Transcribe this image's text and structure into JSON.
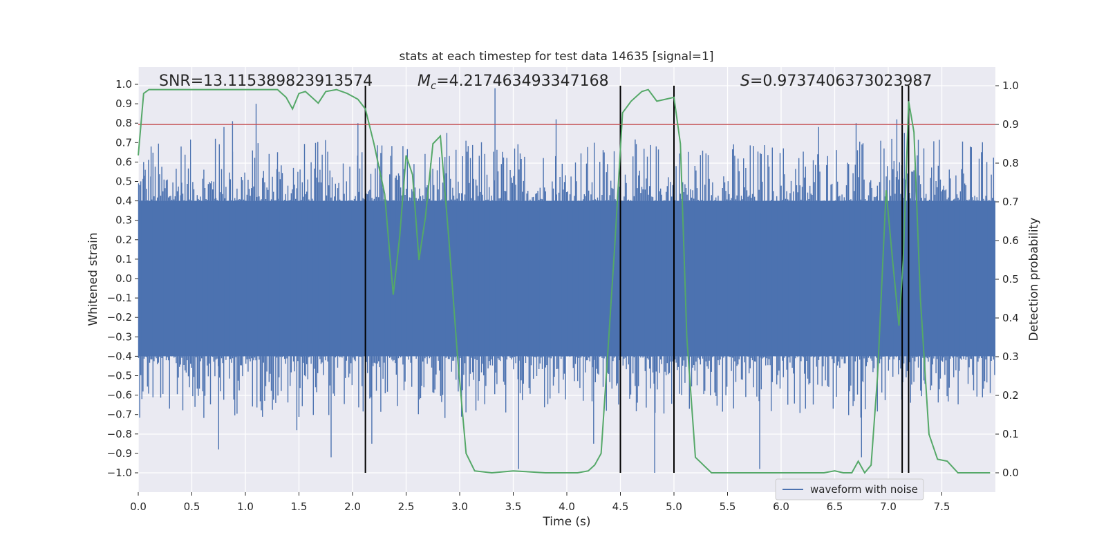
{
  "chart_data": {
    "type": "line",
    "title": "stats at each timestep for test data 14635 [signal=1]",
    "xlabel": "Time (s)",
    "ylabel_left": "Whitened strain",
    "ylabel_right": "Detection probability",
    "xlim": [
      0,
      8
    ],
    "ylim_left": [
      -1.1,
      1.1
    ],
    "ylim_right": [
      -0.05,
      1.05
    ],
    "x_ticks": [
      "0.0",
      "0.5",
      "1.0",
      "1.5",
      "2.0",
      "2.5",
      "3.0",
      "3.5",
      "4.0",
      "4.5",
      "5.0",
      "5.5",
      "6.0",
      "6.5",
      "7.0",
      "7.5"
    ],
    "y_ticks_left": [
      "1.0",
      "0.9",
      "0.8",
      "0.7",
      "0.6",
      "0.5",
      "0.4",
      "0.3",
      "0.2",
      "0.1",
      "0.0",
      "−0.1",
      "−0.2",
      "−0.3",
      "−0.4",
      "−0.5",
      "−0.6",
      "−0.7",
      "−0.8",
      "−0.9",
      "−1.0"
    ],
    "y_ticks_right": [
      "1.0",
      "0.9",
      "0.8",
      "0.7",
      "0.6",
      "0.5",
      "0.4",
      "0.3",
      "0.2",
      "0.1",
      "0.0"
    ],
    "annotations": {
      "snr": "SNR=13.115389823913574",
      "mc_symbol": "M",
      "mc_sub": "c",
      "mc_value": "=4.217463493347168",
      "s_symbol": "S",
      "s_value": "=0.9737406373023987"
    },
    "threshold": {
      "value": 0.9,
      "axis": "right",
      "color": "#c44e52"
    },
    "vertical_lines": [
      2.12,
      4.5,
      5.0,
      7.13,
      7.19
    ],
    "waveform": {
      "name": "waveform with noise",
      "color": "#4c72b0",
      "bulk_amplitude": 0.4,
      "peaks": [
        {
          "t": 0.05,
          "v": 0.6
        },
        {
          "t": 0.12,
          "v": 0.68
        },
        {
          "t": 0.4,
          "v": 0.68
        },
        {
          "t": 0.72,
          "v": 0.72
        },
        {
          "t": 0.75,
          "v": -0.88
        },
        {
          "t": 0.8,
          "v": 0.78
        },
        {
          "t": 0.88,
          "v": 0.81
        },
        {
          "t": 1.1,
          "v": 0.9
        },
        {
          "t": 1.3,
          "v": 0.65
        },
        {
          "t": 1.48,
          "v": -0.78
        },
        {
          "t": 1.8,
          "v": -0.92
        },
        {
          "t": 2.05,
          "v": 0.8
        },
        {
          "t": 2.18,
          "v": -0.85
        },
        {
          "t": 2.88,
          "v": 0.75
        },
        {
          "t": 3.33,
          "v": 0.98
        },
        {
          "t": 3.55,
          "v": -0.98
        },
        {
          "t": 3.9,
          "v": 0.82
        },
        {
          "t": 4.25,
          "v": -0.85
        },
        {
          "t": 4.82,
          "v": -1.0
        },
        {
          "t": 5.0,
          "v": 0.75
        },
        {
          "t": 5.8,
          "v": -0.98
        },
        {
          "t": 6.35,
          "v": 0.78
        },
        {
          "t": 6.7,
          "v": 0.8
        },
        {
          "t": 6.75,
          "v": -0.92
        },
        {
          "t": 7.08,
          "v": 0.82
        },
        {
          "t": 7.15,
          "v": 0.75
        },
        {
          "t": 7.92,
          "v": 0.6
        }
      ]
    },
    "probability": {
      "name": "detection probability",
      "color": "#55a868",
      "x": [
        0.0,
        0.05,
        0.1,
        0.2,
        0.5,
        1.0,
        1.3,
        1.38,
        1.44,
        1.5,
        1.56,
        1.62,
        1.68,
        1.75,
        1.85,
        1.95,
        2.05,
        2.12,
        2.2,
        2.3,
        2.38,
        2.44,
        2.5,
        2.56,
        2.62,
        2.68,
        2.75,
        2.82,
        2.9,
        2.98,
        3.06,
        3.14,
        3.3,
        3.5,
        3.8,
        4.1,
        4.2,
        4.26,
        4.32,
        4.38,
        4.45,
        4.52,
        4.6,
        4.7,
        4.76,
        4.84,
        4.92,
        5.0,
        5.06,
        5.12,
        5.2,
        5.35,
        6.0,
        6.4,
        6.5,
        6.58,
        6.66,
        6.72,
        6.78,
        6.84,
        6.9,
        6.98,
        7.04,
        7.1,
        7.14,
        7.19,
        7.24,
        7.3,
        7.38,
        7.46,
        7.55,
        7.65,
        7.95
      ],
      "y": [
        0.82,
        0.98,
        0.99,
        0.99,
        0.99,
        0.99,
        0.99,
        0.97,
        0.94,
        0.98,
        0.985,
        0.97,
        0.955,
        0.985,
        0.99,
        0.98,
        0.965,
        0.94,
        0.85,
        0.72,
        0.46,
        0.61,
        0.82,
        0.77,
        0.55,
        0.66,
        0.85,
        0.87,
        0.6,
        0.3,
        0.05,
        0.005,
        0.0,
        0.005,
        0.0,
        0.0,
        0.005,
        0.02,
        0.05,
        0.3,
        0.6,
        0.93,
        0.96,
        0.985,
        0.99,
        0.96,
        0.965,
        0.97,
        0.85,
        0.35,
        0.04,
        0.0,
        0.0,
        0.0,
        0.005,
        0.0,
        0.0,
        0.03,
        0.0,
        0.02,
        0.25,
        0.73,
        0.55,
        0.38,
        0.55,
        0.96,
        0.88,
        0.45,
        0.1,
        0.035,
        0.03,
        0.0,
        0.0
      ]
    },
    "legend": {
      "label": "waveform with noise",
      "placement": "lower-right"
    }
  }
}
